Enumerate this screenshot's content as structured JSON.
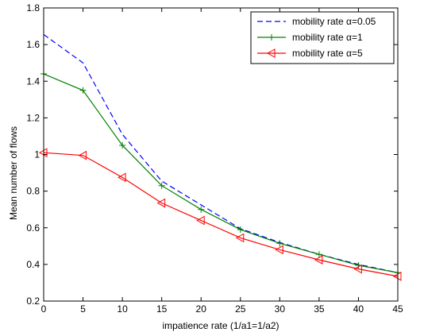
{
  "chart_data": {
    "type": "line",
    "title": "",
    "xlabel": "impatience rate (1/a1=1/a2)",
    "ylabel": "Mean number of flows",
    "xlim": [
      0,
      45
    ],
    "ylim": [
      0.2,
      1.8
    ],
    "xticks": [
      0,
      5,
      10,
      15,
      20,
      25,
      30,
      35,
      40,
      45
    ],
    "yticks": [
      0.2,
      0.4,
      0.6,
      0.8,
      1,
      1.2,
      1.4,
      1.6,
      1.8
    ],
    "grid": false,
    "legend_position": "top-right",
    "x": [
      0,
      5,
      10,
      15,
      20,
      25,
      30,
      35,
      40,
      45
    ],
    "series": [
      {
        "name": "mobility rate  α=0.05",
        "color": "#0000ff",
        "line": "dashed",
        "marker": "none",
        "values": [
          1.655,
          1.5,
          1.11,
          0.855,
          0.725,
          0.595,
          0.52,
          0.455,
          0.4,
          0.355
        ]
      },
      {
        "name": "mobility rate  α=1",
        "color": "#008000",
        "line": "solid",
        "marker": "plus",
        "values": [
          1.44,
          1.35,
          1.05,
          0.83,
          0.7,
          0.59,
          0.515,
          0.455,
          0.395,
          0.355
        ]
      },
      {
        "name": "mobility rate  α=5",
        "color": "#ff0000",
        "line": "solid",
        "marker": "triangle-left",
        "values": [
          1.01,
          0.995,
          0.875,
          0.735,
          0.64,
          0.545,
          0.48,
          0.425,
          0.375,
          0.335
        ]
      }
    ]
  }
}
